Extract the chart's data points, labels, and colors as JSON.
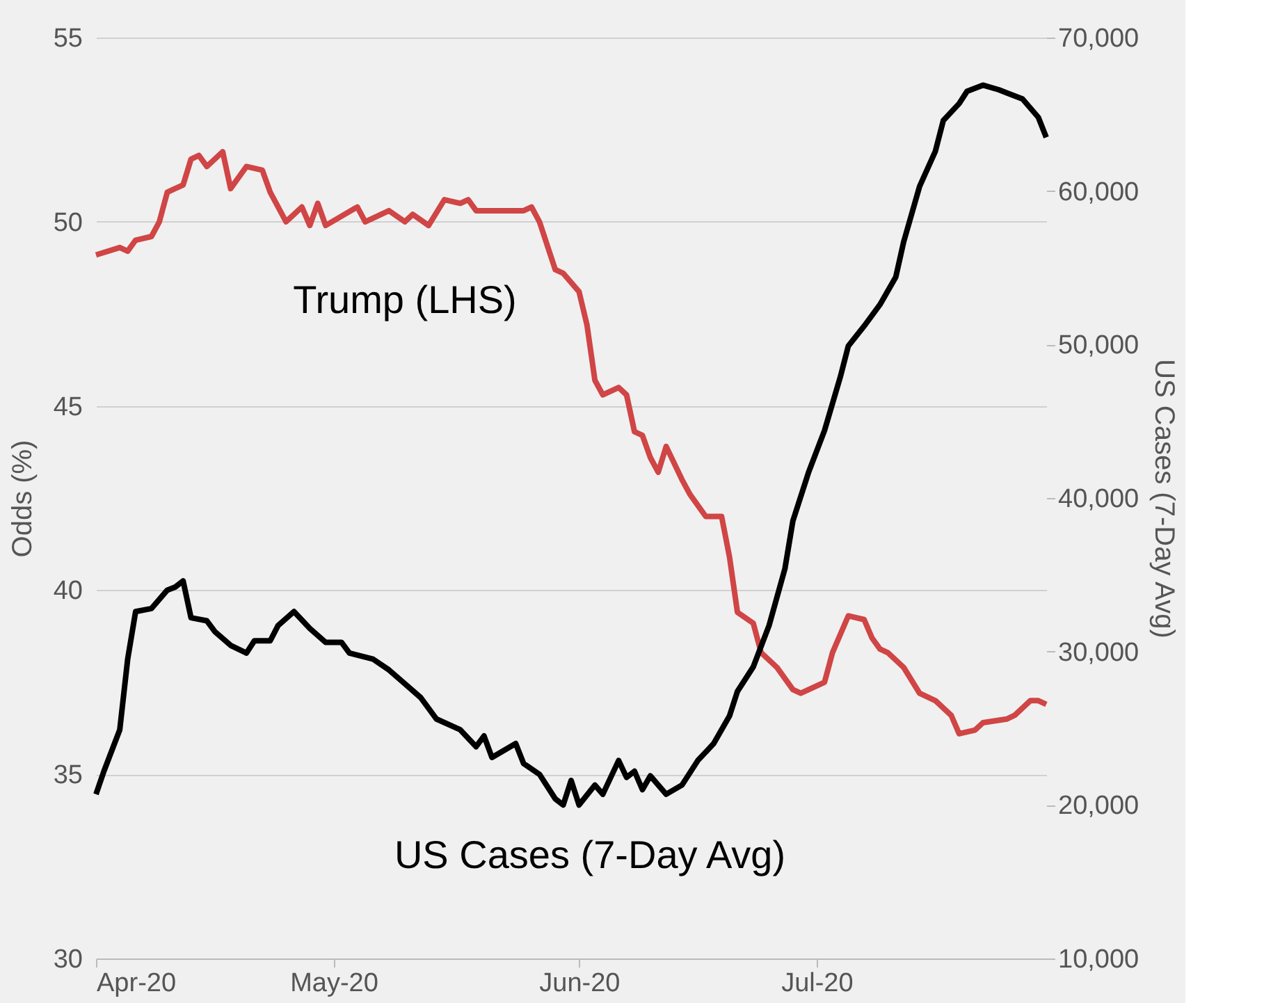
{
  "chart_data": {
    "type": "line",
    "ylabel": "Odds (%)",
    "y2label": "US Cases (7-Day Avg)",
    "xlim": [
      "2020-04-01",
      "2020-07-30"
    ],
    "xticks": [
      {
        "value": "2020-04-01",
        "label": "Apr-20"
      },
      {
        "value": "2020-05-01",
        "label": "May-20"
      },
      {
        "value": "2020-06-01",
        "label": "Jun-20"
      },
      {
        "value": "2020-07-01",
        "label": "Jul-20"
      }
    ],
    "ylim": [
      30,
      55
    ],
    "yticks": [
      30,
      35,
      40,
      45,
      50,
      55
    ],
    "y2lim": [
      10000,
      70000
    ],
    "y2ticks": [
      {
        "value": 10000,
        "label": "10,000"
      },
      {
        "value": 20000,
        "label": "20,000"
      },
      {
        "value": 30000,
        "label": "30,000"
      },
      {
        "value": 40000,
        "label": "40,000"
      },
      {
        "value": 50000,
        "label": "50,000"
      },
      {
        "value": 60000,
        "label": "60,000"
      },
      {
        "value": 70000,
        "label": "70,000"
      }
    ],
    "grid": "y",
    "series": [
      {
        "color": "#d04545",
        "x": [
          "2020-04-01",
          "2020-04-04",
          "2020-04-05",
          "2020-04-06",
          "2020-04-08",
          "2020-04-09",
          "2020-04-10",
          "2020-04-12",
          "2020-04-13",
          "2020-04-14",
          "2020-04-15",
          "2020-04-17",
          "2020-04-18",
          "2020-04-20",
          "2020-04-22",
          "2020-04-23",
          "2020-04-25",
          "2020-04-27",
          "2020-04-28",
          "2020-04-29",
          "2020-04-30",
          "2020-05-04",
          "2020-05-05",
          "2020-05-08",
          "2020-05-10",
          "2020-05-11",
          "2020-05-13",
          "2020-05-15",
          "2020-05-17",
          "2020-05-18",
          "2020-05-19",
          "2020-05-22",
          "2020-05-25",
          "2020-05-26",
          "2020-05-27",
          "2020-05-29",
          "2020-05-30",
          "2020-06-01",
          "2020-06-02",
          "2020-06-03",
          "2020-06-04",
          "2020-06-06",
          "2020-06-07",
          "2020-06-08",
          "2020-06-09",
          "2020-06-10",
          "2020-06-11",
          "2020-06-12",
          "2020-06-14",
          "2020-06-15",
          "2020-06-17",
          "2020-06-19",
          "2020-06-20",
          "2020-06-21",
          "2020-06-23",
          "2020-06-24",
          "2020-06-26",
          "2020-06-28",
          "2020-06-29",
          "2020-07-02",
          "2020-07-03",
          "2020-07-05",
          "2020-07-07",
          "2020-07-08",
          "2020-07-09",
          "2020-07-10",
          "2020-07-12",
          "2020-07-14",
          "2020-07-16",
          "2020-07-18",
          "2020-07-19",
          "2020-07-21",
          "2020-07-22",
          "2020-07-25",
          "2020-07-26",
          "2020-07-28",
          "2020-07-29",
          "2020-07-30"
        ],
        "values": [
          49.1,
          49.3,
          49.2,
          49.5,
          49.6,
          50.0,
          50.8,
          51.0,
          51.7,
          51.8,
          51.5,
          51.9,
          50.9,
          51.5,
          51.4,
          50.8,
          50.0,
          50.4,
          49.9,
          50.5,
          49.9,
          50.4,
          50.0,
          50.3,
          50.0,
          50.2,
          49.9,
          50.6,
          50.5,
          50.6,
          50.3,
          50.3,
          50.3,
          50.4,
          50.0,
          48.7,
          48.6,
          48.1,
          47.2,
          45.7,
          45.3,
          45.5,
          45.3,
          44.3,
          44.2,
          43.6,
          43.2,
          43.9,
          43.0,
          42.6,
          42.0,
          42.0,
          40.9,
          39.4,
          39.1,
          38.3,
          37.9,
          37.3,
          37.2,
          37.5,
          38.3,
          39.3,
          39.2,
          38.7,
          38.4,
          38.3,
          37.9,
          37.2,
          37.0,
          36.6,
          36.1,
          36.2,
          36.4,
          36.5,
          36.6,
          37.0,
          37.0,
          36.9
        ]
      },
      {
        "color": "#000000",
        "axis": "y2",
        "x": [
          "2020-04-01",
          "2020-04-02",
          "2020-04-04",
          "2020-04-05",
          "2020-04-06",
          "2020-04-08",
          "2020-04-10",
          "2020-04-11",
          "2020-04-12",
          "2020-04-13",
          "2020-04-15",
          "2020-04-16",
          "2020-04-18",
          "2020-04-20",
          "2020-04-21",
          "2020-04-23",
          "2020-04-24",
          "2020-04-26",
          "2020-04-28",
          "2020-04-30",
          "2020-05-02",
          "2020-05-03",
          "2020-05-06",
          "2020-05-08",
          "2020-05-10",
          "2020-05-12",
          "2020-05-14",
          "2020-05-17",
          "2020-05-19",
          "2020-05-20",
          "2020-05-21",
          "2020-05-24",
          "2020-05-25",
          "2020-05-27",
          "2020-05-29",
          "2020-05-30",
          "2020-05-31",
          "2020-06-01",
          "2020-06-03",
          "2020-06-04",
          "2020-06-06",
          "2020-06-07",
          "2020-06-08",
          "2020-06-09",
          "2020-06-10",
          "2020-06-12",
          "2020-06-14",
          "2020-06-16",
          "2020-06-18",
          "2020-06-20",
          "2020-06-21",
          "2020-06-23",
          "2020-06-25",
          "2020-06-27",
          "2020-06-28",
          "2020-06-30",
          "2020-07-02",
          "2020-07-04",
          "2020-07-05",
          "2020-07-07",
          "2020-07-09",
          "2020-07-11",
          "2020-07-12",
          "2020-07-14",
          "2020-07-16",
          "2020-07-17",
          "2020-07-19",
          "2020-07-20",
          "2020-07-22",
          "2020-07-24",
          "2020-07-25",
          "2020-07-27",
          "2020-07-29",
          "2020-07-30"
        ],
        "values": [
          20700,
          22200,
          24900,
          29500,
          32600,
          32800,
          34000,
          34200,
          34600,
          32200,
          32000,
          31300,
          30400,
          29900,
          30700,
          30700,
          31700,
          32600,
          31500,
          30600,
          30600,
          29900,
          29500,
          28800,
          27900,
          27000,
          25600,
          24900,
          23800,
          24500,
          23100,
          24000,
          22700,
          22000,
          20400,
          20000,
          21600,
          20000,
          21300,
          20700,
          22900,
          21800,
          22200,
          21000,
          21900,
          20700,
          21300,
          22900,
          24000,
          25800,
          27400,
          29000,
          31700,
          35400,
          38500,
          41700,
          44400,
          47900,
          49900,
          51200,
          52600,
          54400,
          56700,
          60300,
          62600,
          64600,
          65700,
          66500,
          66900,
          66600,
          66400,
          66000,
          64800,
          63500
        ]
      }
    ],
    "annotations": [
      "Trump (LHS)",
      "US Cases (7-Day Avg)"
    ]
  }
}
